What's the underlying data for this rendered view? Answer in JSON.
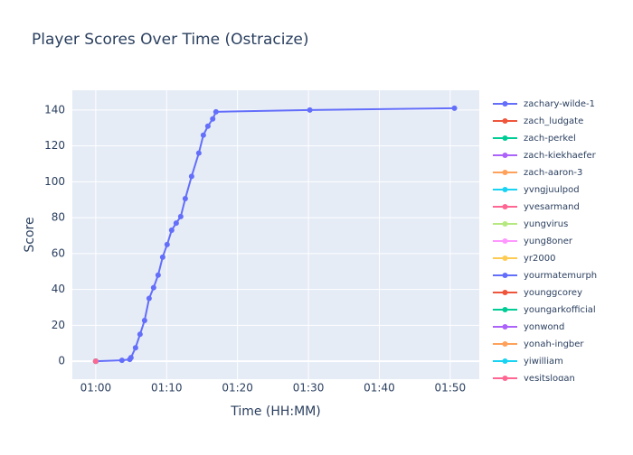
{
  "chart_data": {
    "type": "line",
    "title": "Player Scores Over Time (Ostracize)",
    "x_label": "Time (HH:MM)",
    "y_label": "Score",
    "xlim": [
      56.7,
      114.1
    ],
    "ylim": [
      -10,
      151
    ],
    "xticks": [
      {
        "value": 60,
        "label": "01:00"
      },
      {
        "value": 70,
        "label": "01:10"
      },
      {
        "value": 80,
        "label": "01:20"
      },
      {
        "value": 90,
        "label": "01:30"
      },
      {
        "value": 100,
        "label": "01:40"
      },
      {
        "value": 110,
        "label": "01:50"
      }
    ],
    "yticks": [
      0,
      20,
      40,
      60,
      80,
      100,
      120,
      140
    ],
    "grid": true,
    "series": [
      {
        "name": "zachary-wilde-1",
        "color": "#636efa",
        "x": [
          60,
          63.7,
          64.8,
          64.97,
          65.61,
          66.25,
          66.89,
          67.53,
          68.16,
          68.8,
          69.44,
          70.07,
          70.71,
          71.35,
          71.99,
          72.63,
          73.52,
          74.54,
          75.18,
          75.82,
          76.5,
          76.96,
          90.2,
          110.6
        ],
        "values": [
          0,
          0.5,
          1,
          2,
          7.5,
          15,
          22.7,
          35,
          41,
          48,
          58,
          65,
          73,
          77,
          80.6,
          90.6,
          103,
          116,
          126,
          131,
          135,
          139,
          140,
          141
        ]
      },
      {
        "name": "zach_ludgate",
        "color": "#EF553B",
        "x": [
          60
        ],
        "values": [
          0
        ]
      },
      {
        "name": "zach-perkel",
        "color": "#00cc96",
        "x": [
          60
        ],
        "values": [
          0
        ]
      },
      {
        "name": "zach-kiekhaefer",
        "color": "#ab63fa",
        "x": [
          60
        ],
        "values": [
          0
        ]
      },
      {
        "name": "zach-aaron-3",
        "color": "#FFA15A",
        "x": [
          60
        ],
        "values": [
          0
        ]
      },
      {
        "name": "yvngjuulpod",
        "color": "#19d3f3",
        "x": [
          60
        ],
        "values": [
          0
        ]
      },
      {
        "name": "yvesarmand",
        "color": "#FF6692",
        "x": [
          60
        ],
        "values": [
          0
        ]
      },
      {
        "name": "yungvirus",
        "color": "#B6E880",
        "x": [
          60
        ],
        "values": [
          0
        ]
      },
      {
        "name": "yung8oner",
        "color": "#FF97FF",
        "x": [
          60
        ],
        "values": [
          0
        ]
      },
      {
        "name": "yr2000",
        "color": "#FECB52",
        "x": [
          60
        ],
        "values": [
          0
        ]
      },
      {
        "name": "yourmatemurph",
        "color": "#636efa",
        "x": [
          60
        ],
        "values": [
          0
        ]
      },
      {
        "name": "younggcorey",
        "color": "#EF553B",
        "x": [
          60
        ],
        "values": [
          0
        ]
      },
      {
        "name": "youngarkofficial",
        "color": "#00cc96",
        "x": [
          60
        ],
        "values": [
          0
        ]
      },
      {
        "name": "yonwond",
        "color": "#ab63fa",
        "x": [
          60
        ],
        "values": [
          0
        ]
      },
      {
        "name": "yonah-ingber",
        "color": "#FFA15A",
        "x": [
          60
        ],
        "values": [
          0
        ]
      },
      {
        "name": "yiwilliam",
        "color": "#19d3f3",
        "x": [
          60
        ],
        "values": [
          0
        ]
      },
      {
        "name": "yesitslogan",
        "color": "#FF6692",
        "x": [
          60
        ],
        "values": [
          0
        ]
      }
    ]
  }
}
